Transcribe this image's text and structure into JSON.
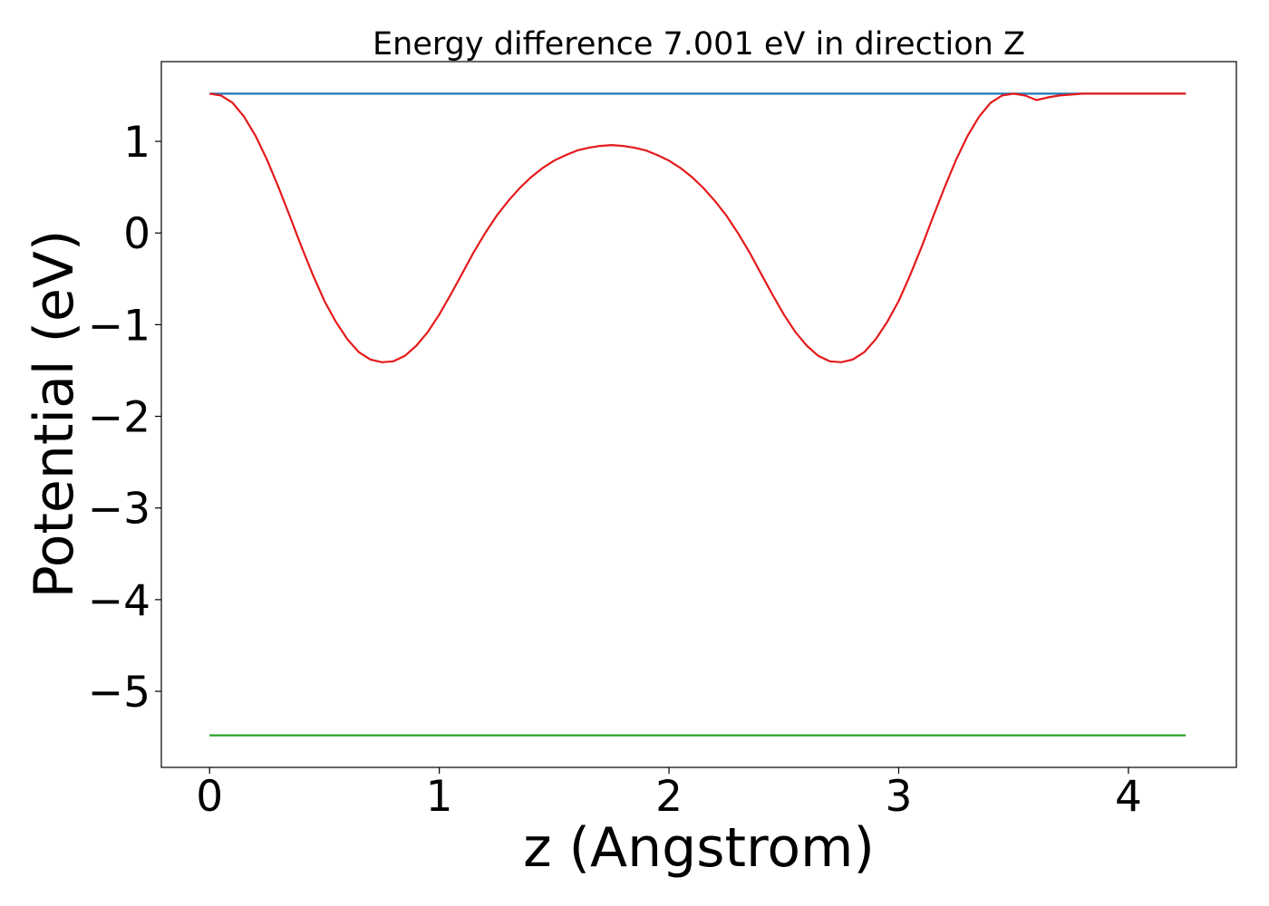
{
  "chart_data": {
    "type": "line",
    "title": "Energy difference 7.001 eV in direction Z",
    "xlabel": "z (Angstrom)",
    "ylabel": "Potential (eV)",
    "xlim": [
      -0.21,
      4.47
    ],
    "ylim": [
      -5.83,
      1.87
    ],
    "x_ticks": [
      0,
      1,
      2,
      3,
      4
    ],
    "x_tick_labels": [
      "0",
      "1",
      "2",
      "3",
      "4"
    ],
    "y_ticks": [
      1,
      0,
      -1,
      -2,
      -3,
      -4,
      -5
    ],
    "y_tick_labels": [
      "1",
      "0",
      "−1",
      "−2",
      "−3",
      "−4",
      "−5"
    ],
    "grid": false,
    "series": [
      {
        "color": "#1f77b4",
        "x": [
          0,
          4.25
        ],
        "y": [
          1.52,
          1.52
        ]
      },
      {
        "color": "#2ca02c",
        "x": [
          0,
          4.25
        ],
        "y": [
          -5.48,
          -5.48
        ]
      },
      {
        "color": "#e41a1c",
        "x": [
          0,
          0.05,
          0.1,
          0.15,
          0.2,
          0.25,
          0.3,
          0.35,
          0.4,
          0.45,
          0.5,
          0.55,
          0.6,
          0.65,
          0.7,
          0.75,
          0.8,
          0.85,
          0.9,
          0.95,
          1.0,
          1.05,
          1.1,
          1.15,
          1.2,
          1.25,
          1.3,
          1.35,
          1.4,
          1.45,
          1.5,
          1.55,
          1.6,
          1.65,
          1.7,
          1.75,
          1.8,
          1.85,
          1.9,
          1.95,
          2.0,
          2.05,
          2.1,
          2.15,
          2.2,
          2.25,
          2.3,
          2.35,
          2.4,
          2.45,
          2.5,
          2.55,
          2.6,
          2.65,
          2.7,
          2.75,
          2.8,
          2.85,
          2.9,
          2.95,
          3.0,
          3.05,
          3.1,
          3.15,
          3.2,
          3.25,
          3.3,
          3.35,
          3.4,
          3.45,
          3.5,
          3.55,
          3.6,
          3.65,
          3.7,
          3.75,
          3.8,
          3.85,
          3.9,
          3.95,
          4.0,
          4.05,
          4.1,
          4.15,
          4.2,
          4.25
        ],
        "y": [
          1.52,
          1.5,
          1.42,
          1.27,
          1.06,
          0.8,
          0.5,
          0.18,
          -0.15,
          -0.46,
          -0.74,
          -0.97,
          -1.16,
          -1.3,
          -1.38,
          -1.41,
          -1.4,
          -1.34,
          -1.23,
          -1.08,
          -0.89,
          -0.67,
          -0.44,
          -0.21,
          0.0,
          0.19,
          0.35,
          0.49,
          0.61,
          0.71,
          0.79,
          0.85,
          0.9,
          0.93,
          0.95,
          0.96,
          0.95,
          0.93,
          0.9,
          0.85,
          0.79,
          0.71,
          0.61,
          0.49,
          0.35,
          0.19,
          0.0,
          -0.21,
          -0.44,
          -0.67,
          -0.89,
          -1.08,
          -1.23,
          -1.34,
          -1.4,
          -1.41,
          -1.38,
          -1.3,
          -1.16,
          -0.97,
          -0.74,
          -0.46,
          -0.15,
          0.18,
          0.5,
          0.8,
          1.06,
          1.27,
          1.42,
          1.5,
          1.52,
          1.5,
          1.45,
          1.48,
          1.5,
          1.51,
          1.52,
          1.52,
          1.52,
          1.52,
          1.52,
          1.52,
          1.52,
          1.52,
          1.52,
          1.52
        ]
      }
    ]
  }
}
